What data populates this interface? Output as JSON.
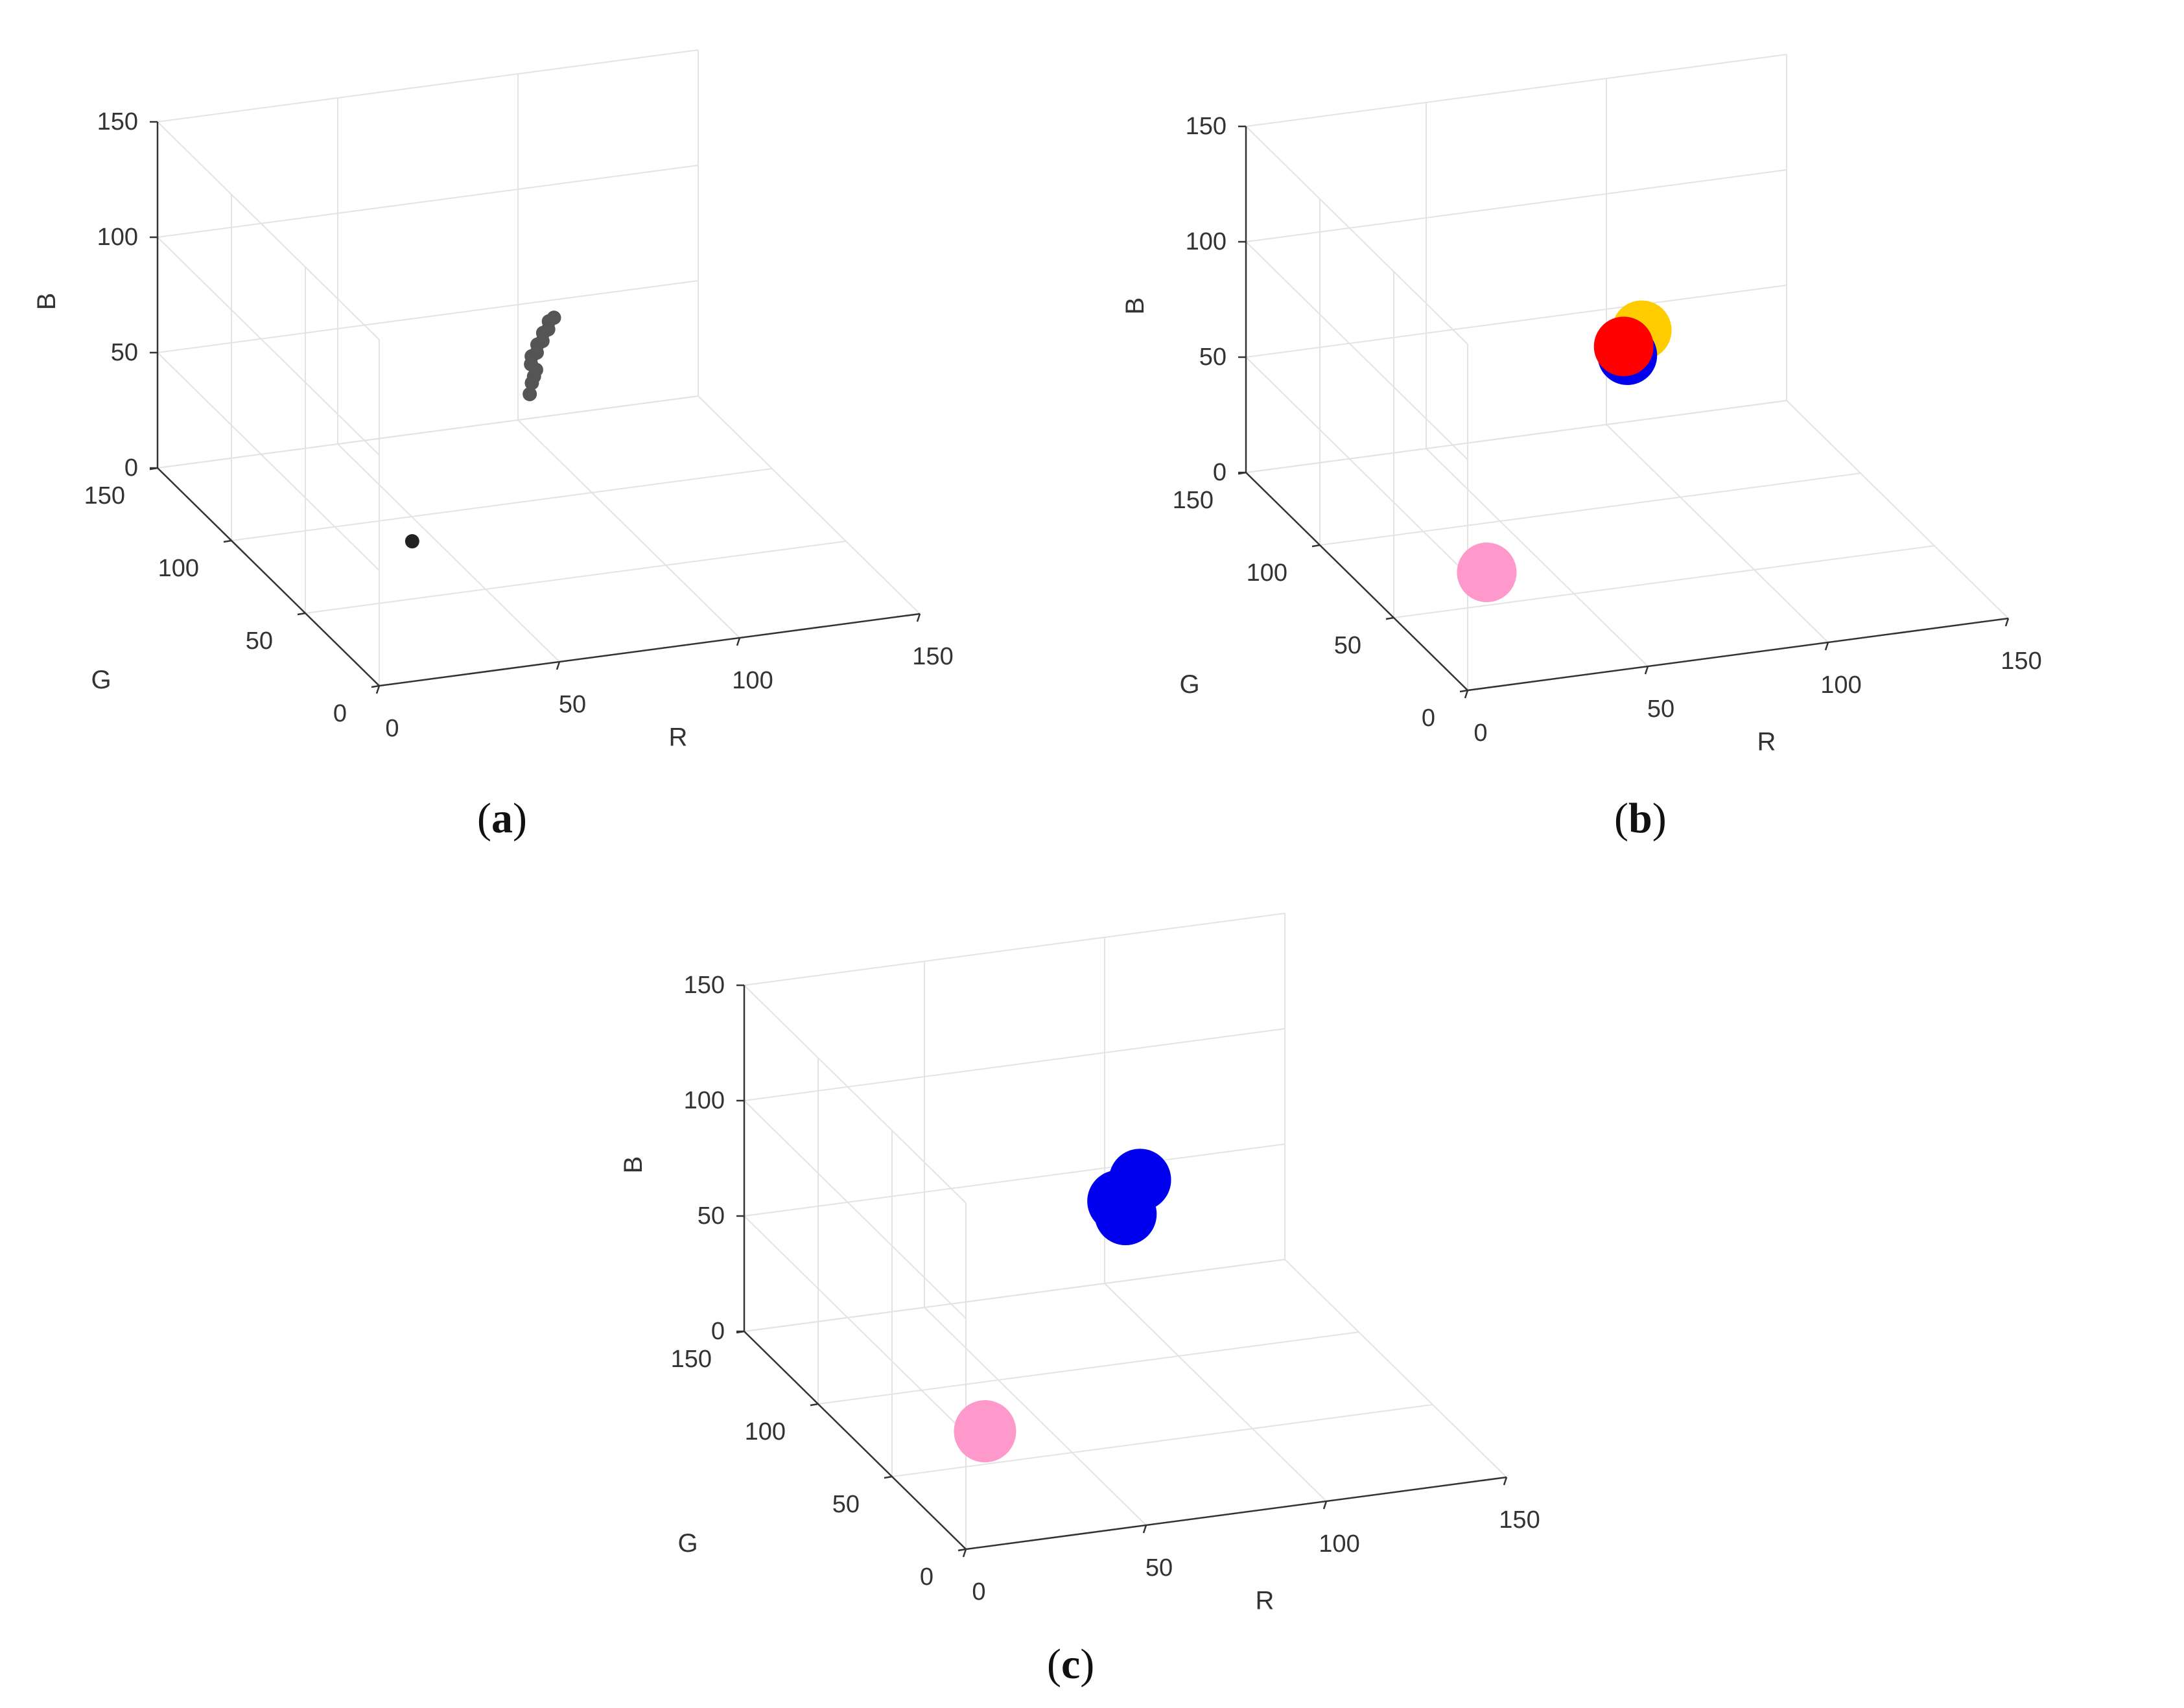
{
  "figure": {
    "panels": [
      {
        "id": "a",
        "caption_letter": "a"
      },
      {
        "id": "b",
        "caption_letter": "b"
      },
      {
        "id": "c",
        "caption_letter": "c"
      }
    ]
  },
  "chart_data": [
    {
      "panel": "a",
      "type": "scatter",
      "title": "",
      "xlabel": "R",
      "ylabel": "G",
      "zlabel": "B",
      "xlim": [
        0,
        150
      ],
      "ylim": [
        0,
        150
      ],
      "zlim": [
        0,
        150
      ],
      "xticks": [
        "0",
        "50",
        "100",
        "150"
      ],
      "yticks": [
        "0",
        "50",
        "100",
        "150"
      ],
      "zticks": [
        "0",
        "50",
        "100",
        "150"
      ],
      "grid": true,
      "series": [
        {
          "color": "#555555",
          "marker_size": "small",
          "points": [
            {
              "x": 78,
              "y": 72,
              "z": 98
            },
            {
              "x": 77,
              "y": 73,
              "z": 96
            },
            {
              "x": 76,
              "y": 71,
              "z": 94
            },
            {
              "x": 75,
              "y": 72,
              "z": 92
            },
            {
              "x": 74,
              "y": 70,
              "z": 90
            },
            {
              "x": 73,
              "y": 71,
              "z": 88
            },
            {
              "x": 72,
              "y": 69,
              "z": 86
            },
            {
              "x": 71,
              "y": 70,
              "z": 84
            },
            {
              "x": 70,
              "y": 68,
              "z": 82
            },
            {
              "x": 71,
              "y": 67,
              "z": 80
            },
            {
              "x": 70,
              "y": 66,
              "z": 78
            },
            {
              "x": 69,
              "y": 65,
              "z": 76
            },
            {
              "x": 68,
              "y": 64,
              "z": 72
            }
          ]
        },
        {
          "color": "#222222",
          "marker_size": "small",
          "points": [
            {
              "x": 44,
              "y": 85,
              "z": 0
            }
          ]
        }
      ]
    },
    {
      "panel": "b",
      "type": "scatter",
      "title": "",
      "xlabel": "R",
      "ylabel": "G",
      "zlabel": "B",
      "xlim": [
        0,
        150
      ],
      "ylim": [
        0,
        150
      ],
      "zlim": [
        0,
        150
      ],
      "xticks": [
        "0",
        "50",
        "100",
        "150"
      ],
      "yticks": [
        "0",
        "50",
        "100",
        "150"
      ],
      "zticks": [
        "0",
        "50",
        "100",
        "150"
      ],
      "grid": true,
      "series": [
        {
          "color": "#ff99cc",
          "marker_size": "large",
          "points": [
            {
              "x": 34,
              "y": 70,
              "z": 0
            }
          ]
        },
        {
          "color": "#ffcc00",
          "marker_size": "large",
          "points": [
            {
              "x": 77,
              "y": 70,
              "z": 96
            }
          ]
        },
        {
          "color": "#0000ee",
          "marker_size": "large",
          "points": [
            {
              "x": 73,
              "y": 70,
              "z": 86
            }
          ]
        },
        {
          "color": "#ff0000",
          "marker_size": "large",
          "points": [
            {
              "x": 72,
              "y": 70,
              "z": 90
            }
          ]
        }
      ]
    },
    {
      "panel": "c",
      "type": "scatter",
      "title": "",
      "xlabel": "R",
      "ylabel": "G",
      "zlabel": "B",
      "xlim": [
        0,
        150
      ],
      "ylim": [
        0,
        150
      ],
      "zlim": [
        0,
        150
      ],
      "xticks": [
        "0",
        "50",
        "100",
        "150"
      ],
      "yticks": [
        "0",
        "50",
        "100",
        "150"
      ],
      "zticks": [
        "0",
        "50",
        "100",
        "150"
      ],
      "grid": true,
      "series": [
        {
          "color": "#ff99cc",
          "marker_size": "large",
          "points": [
            {
              "x": 34,
              "y": 70,
              "z": 0
            }
          ]
        },
        {
          "color": "#0000ee",
          "marker_size": "large",
          "points": [
            {
              "x": 77,
              "y": 70,
              "z": 100
            },
            {
              "x": 73,
              "y": 70,
              "z": 86
            },
            {
              "x": 71,
              "y": 70,
              "z": 92
            }
          ]
        }
      ]
    }
  ]
}
